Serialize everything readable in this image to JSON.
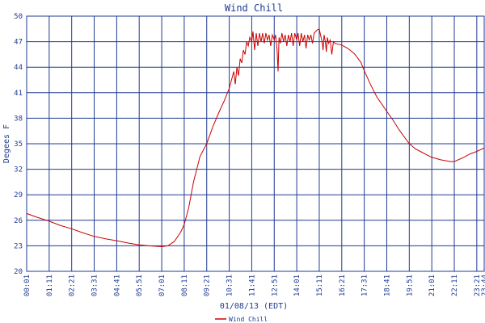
{
  "chart_data": {
    "type": "line",
    "title": "Wind Chill",
    "xlabel": "01/08/13 (EDT)",
    "ylabel": "Degees F",
    "ylim": [
      20,
      50
    ],
    "yticks": [
      20,
      23,
      26,
      29,
      32,
      35,
      38,
      41,
      44,
      47,
      50
    ],
    "xlim_minutes": [
      1,
      1424
    ],
    "xticks": [
      "00:01",
      "01:11",
      "02:21",
      "03:31",
      "04:41",
      "05:51",
      "07:01",
      "08:11",
      "09:21",
      "10:31",
      "11:41",
      "12:51",
      "14:01",
      "15:11",
      "16:21",
      "17:31",
      "18:41",
      "19:51",
      "21:01",
      "22:11",
      "23:21",
      "23:44"
    ],
    "grid": true,
    "legend": "bottom",
    "series": [
      {
        "name": "Wind Chill",
        "color": "#cc0000",
        "points": [
          [
            "00:01",
            26.8
          ],
          [
            "00:30",
            26.4
          ],
          [
            "01:11",
            25.9
          ],
          [
            "01:45",
            25.4
          ],
          [
            "02:21",
            25.0
          ],
          [
            "02:50",
            24.6
          ],
          [
            "03:31",
            24.1
          ],
          [
            "04:10",
            23.8
          ],
          [
            "04:41",
            23.6
          ],
          [
            "05:20",
            23.3
          ],
          [
            "05:51",
            23.1
          ],
          [
            "06:20",
            23.0
          ],
          [
            "07:01",
            22.9
          ],
          [
            "07:20",
            23.0
          ],
          [
            "07:40",
            23.5
          ],
          [
            "08:00",
            24.6
          ],
          [
            "08:11",
            25.5
          ],
          [
            "08:25",
            27.5
          ],
          [
            "08:40",
            30.5
          ],
          [
            "09:00",
            33.5
          ],
          [
            "09:21",
            35.0
          ],
          [
            "09:40",
            37.0
          ],
          [
            "10:00",
            38.8
          ],
          [
            "10:15",
            40.0
          ],
          [
            "10:31",
            41.5
          ],
          [
            "10:38",
            42.5
          ],
          [
            "10:45",
            43.5
          ],
          [
            "10:50",
            42.0
          ],
          [
            "10:55",
            44.0
          ],
          [
            "11:00",
            43.0
          ],
          [
            "11:05",
            45.0
          ],
          [
            "11:10",
            44.5
          ],
          [
            "11:15",
            46.0
          ],
          [
            "11:20",
            45.5
          ],
          [
            "11:25",
            47.0
          ],
          [
            "11:30",
            46.5
          ],
          [
            "11:35",
            47.5
          ],
          [
            "11:41",
            47.0
          ],
          [
            "11:45",
            48.2
          ],
          [
            "11:50",
            46.0
          ],
          [
            "11:55",
            48.0
          ],
          [
            "12:00",
            46.5
          ],
          [
            "12:05",
            48.0
          ],
          [
            "12:10",
            47.0
          ],
          [
            "12:15",
            48.0
          ],
          [
            "12:20",
            46.8
          ],
          [
            "12:25",
            48.0
          ],
          [
            "12:30",
            47.2
          ],
          [
            "12:35",
            47.8
          ],
          [
            "12:40",
            46.5
          ],
          [
            "12:45",
            47.8
          ],
          [
            "12:51",
            47.2
          ],
          [
            "12:55",
            47.8
          ],
          [
            "13:00",
            46.0
          ],
          [
            "13:03",
            43.5
          ],
          [
            "13:06",
            47.5
          ],
          [
            "13:10",
            46.8
          ],
          [
            "13:15",
            48.0
          ],
          [
            "13:20",
            47.0
          ],
          [
            "13:25",
            47.8
          ],
          [
            "13:30",
            46.5
          ],
          [
            "13:35",
            47.8
          ],
          [
            "13:40",
            47.0
          ],
          [
            "13:45",
            48.0
          ],
          [
            "13:50",
            46.5
          ],
          [
            "13:55",
            48.0
          ],
          [
            "14:01",
            47.2
          ],
          [
            "14:05",
            48.0
          ],
          [
            "14:10",
            46.5
          ],
          [
            "14:15",
            48.0
          ],
          [
            "14:20",
            47.0
          ],
          [
            "14:25",
            47.8
          ],
          [
            "14:30",
            46.2
          ],
          [
            "14:35",
            47.8
          ],
          [
            "14:40",
            47.2
          ],
          [
            "14:45",
            47.8
          ],
          [
            "14:50",
            46.8
          ],
          [
            "14:55",
            48.0
          ],
          [
            "15:00",
            48.2
          ],
          [
            "15:05",
            48.4
          ],
          [
            "15:11",
            48.5
          ],
          [
            "15:15",
            47.8
          ],
          [
            "15:20",
            47.0
          ],
          [
            "15:23",
            46.0
          ],
          [
            "15:26",
            47.8
          ],
          [
            "15:30",
            47.0
          ],
          [
            "15:33",
            45.8
          ],
          [
            "15:36",
            47.5
          ],
          [
            "15:40",
            46.8
          ],
          [
            "15:45",
            47.2
          ],
          [
            "15:50",
            45.5
          ],
          [
            "15:55",
            47.0
          ],
          [
            "16:00",
            46.8
          ],
          [
            "16:21",
            46.6
          ],
          [
            "16:40",
            46.2
          ],
          [
            "17:00",
            45.6
          ],
          [
            "17:20",
            44.6
          ],
          [
            "17:31",
            43.6
          ],
          [
            "17:50",
            42.0
          ],
          [
            "18:10",
            40.5
          ],
          [
            "18:41",
            38.8
          ],
          [
            "19:00",
            37.8
          ],
          [
            "19:20",
            36.6
          ],
          [
            "19:51",
            35.0
          ],
          [
            "20:10",
            34.4
          ],
          [
            "20:30",
            34.0
          ],
          [
            "21:01",
            33.4
          ],
          [
            "21:30",
            33.1
          ],
          [
            "22:00",
            32.9
          ],
          [
            "22:11",
            32.9
          ],
          [
            "22:40",
            33.4
          ],
          [
            "23:00",
            33.8
          ],
          [
            "23:21",
            34.1
          ],
          [
            "23:44",
            34.5
          ]
        ]
      }
    ]
  }
}
